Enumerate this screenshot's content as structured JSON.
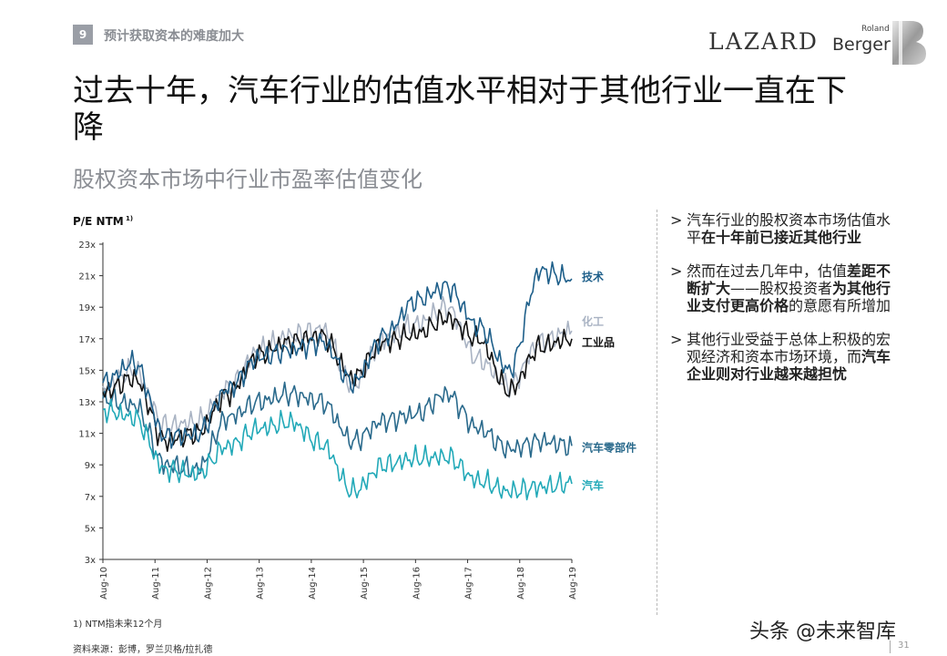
{
  "header": {
    "section_number": "9",
    "section_title": "预计获取资本的难度加大",
    "logo_lazard": "LAZARD",
    "logo_rb_small": "Roland",
    "logo_rb_main": "Berger"
  },
  "title": "过去十年，汽车行业的估值水平相对于其他行业一直在下降",
  "subtitle": "股权资本市场中行业市盈率估值变化",
  "bullets": [
    {
      "parts": [
        {
          "t": "汽车行业的股权资本市场估值水平",
          "b": false
        },
        {
          "t": "在十年前已接近其他行业",
          "b": true
        }
      ]
    },
    {
      "parts": [
        {
          "t": "然而在过去几年中，估值",
          "b": false
        },
        {
          "t": "差距不断扩大",
          "b": true
        },
        {
          "t": "——股权投资者",
          "b": false
        },
        {
          "t": "为其他行业支付更高价格",
          "b": true
        },
        {
          "t": "的意愿有所增加",
          "b": false
        }
      ]
    },
    {
      "parts": [
        {
          "t": "其他行业受益于总体上积极的宏观经济和资本市场环境，而",
          "b": false
        },
        {
          "t": "汽车企业则对行业越来越担忧",
          "b": true
        }
      ]
    }
  ],
  "bullet_marker": ">",
  "footnote": "1) NTM指未来12个月",
  "source": "资料来源：彭博，罗兰贝格/拉扎德",
  "watermark": "头条 @未来智库",
  "page_number": "31",
  "chart_data": {
    "type": "line",
    "ylabel": "P/E NTM",
    "ylabel_sup": "1)",
    "ylim": [
      3,
      23
    ],
    "yticks": [
      "3x",
      "5x",
      "7x",
      "9x",
      "11x",
      "13x",
      "15x",
      "17x",
      "19x",
      "21x",
      "23x"
    ],
    "x_range": [
      "Aug-10",
      "Aug-19"
    ],
    "xticks": [
      "Aug-10",
      "Aug-11",
      "Aug-12",
      "Aug-13",
      "Aug-14",
      "Aug-15",
      "Aug-16",
      "Aug-17",
      "Aug-18",
      "Aug-19"
    ],
    "series": [
      {
        "name": "技术",
        "color": "#1e5f8a",
        "label_color": "#1e5f8a",
        "values": [
          14.2,
          15.5,
          10.8,
          10.9,
          13.8,
          15.8,
          16.3,
          16.8,
          14.2,
          17.2,
          19.4,
          20.3,
          17.8,
          15.0,
          21.3,
          20.8
        ]
      },
      {
        "name": "化工",
        "color": "#a9b3c3",
        "label_color": "#a9b3c3",
        "values": [
          14.0,
          15.0,
          11.5,
          11.7,
          13.8,
          16.3,
          17.2,
          17.6,
          14.0,
          17.0,
          17.9,
          19.0,
          15.7,
          14.0,
          16.8,
          17.5
        ]
      },
      {
        "name": "工业品",
        "color": "#111111",
        "label_color": "#111111",
        "values": [
          13.6,
          14.5,
          10.5,
          11.0,
          13.5,
          16.0,
          16.8,
          17.2,
          14.5,
          16.8,
          17.3,
          18.3,
          17.0,
          13.7,
          16.5,
          17.0
        ]
      },
      {
        "name": "汽车零部件",
        "color": "#2a6a8c",
        "label_color": "#2a6a8c",
        "values": [
          13.2,
          12.8,
          9.0,
          8.7,
          12.0,
          13.0,
          13.5,
          13.0,
          10.5,
          11.8,
          12.2,
          13.5,
          11.3,
          10.0,
          10.5,
          10.2
        ]
      },
      {
        "name": "汽车",
        "color": "#22a9b8",
        "label_color": "#22a9b8",
        "values": [
          12.5,
          12.0,
          8.7,
          8.4,
          10.2,
          11.3,
          11.7,
          10.3,
          7.3,
          9.0,
          9.4,
          9.5,
          8.0,
          7.3,
          7.6,
          7.8
        ]
      }
    ]
  }
}
